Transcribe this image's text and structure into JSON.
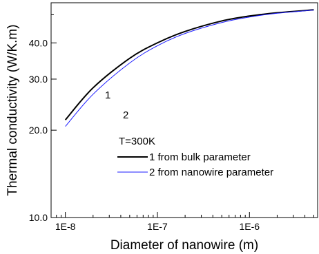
{
  "chart_data": {
    "type": "line",
    "xscale": "log",
    "yscale": "log",
    "xlim": [
      7e-09,
      5.5e-06
    ],
    "ylim": [
      10,
      55
    ],
    "xlabel": "Diameter of nanowire (m)",
    "ylabel": "Thermal conductivity (W/K.m)",
    "xticks": [
      {
        "value": 1e-08,
        "label": "1E-8"
      },
      {
        "value": 1e-07,
        "label": "1E-7"
      },
      {
        "value": 1e-06,
        "label": "1E-6"
      }
    ],
    "yticks": [
      {
        "value": 10,
        "label": "10.0"
      },
      {
        "value": 20,
        "label": "20.0"
      },
      {
        "value": 30,
        "label": "30.0"
      },
      {
        "value": 40,
        "label": "40.0"
      }
    ],
    "grid": false,
    "legend_title": "T=300K",
    "legend_position": "lower-right",
    "series": [
      {
        "name": "1 from bulk parameter",
        "label": "1",
        "color": "#000000",
        "x": [
          1e-08,
          2e-08,
          5e-08,
          1e-07,
          2e-07,
          5e-07,
          1e-06,
          2e-06,
          5e-06
        ],
        "y": [
          21.7,
          28.0,
          35.4,
          40.0,
          43.8,
          47.6,
          49.5,
          50.8,
          52.0
        ]
      },
      {
        "name": "2 from nanowire parameter",
        "label": "2",
        "color": "#1a1aff",
        "x": [
          1e-08,
          2e-08,
          5e-08,
          1e-07,
          2e-07,
          5e-07,
          1e-06,
          2e-06,
          5e-06
        ],
        "y": [
          20.6,
          26.6,
          34.1,
          39.1,
          43.1,
          47.0,
          49.1,
          50.6,
          51.9
        ]
      }
    ]
  }
}
